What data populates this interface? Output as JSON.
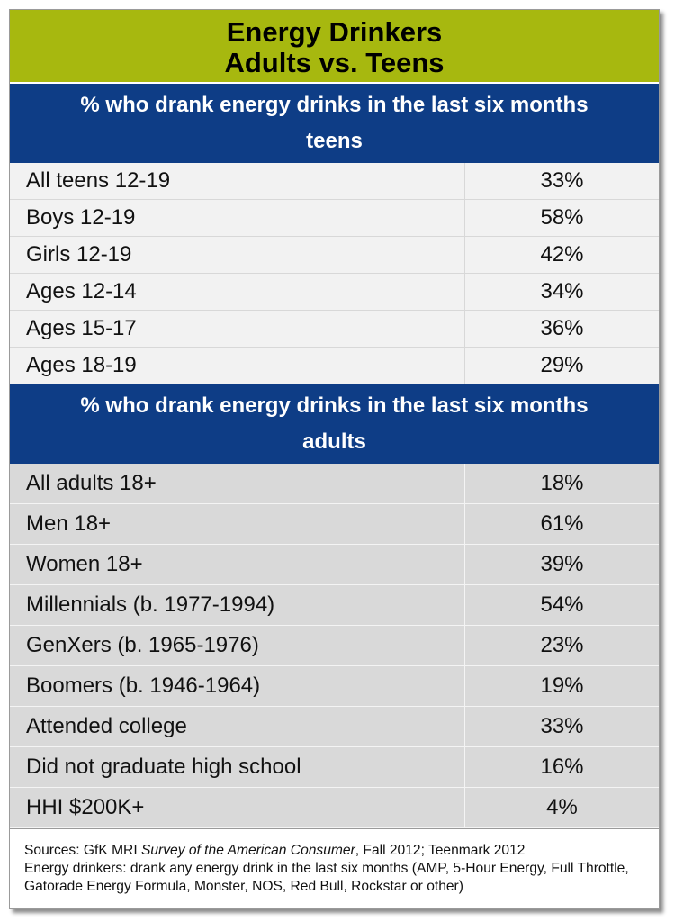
{
  "chart_data": {
    "type": "table",
    "title_line1": "Energy Drinkers",
    "title_line2": "Adults vs. Teens",
    "teens": {
      "header_line1": "% who drank energy drinks in the last six months",
      "header_line2": "teens",
      "rows": [
        {
          "label": "All teens 12-19",
          "value": "33%"
        },
        {
          "label": "Boys 12-19",
          "value": "58%"
        },
        {
          "label": "Girls 12-19",
          "value": "42%"
        },
        {
          "label": "Ages 12-14",
          "value": "34%"
        },
        {
          "label": "Ages 15-17",
          "value": "36%"
        },
        {
          "label": "Ages 18-19",
          "value": "29%"
        }
      ]
    },
    "adults": {
      "header_line1": "% who drank energy drinks in the last six months",
      "header_line2": "adults",
      "rows": [
        {
          "label": "All adults 18+",
          "value": "18%"
        },
        {
          "label": "Men 18+",
          "value": "61%"
        },
        {
          "label": "Women 18+",
          "value": "39%"
        },
        {
          "label": "Millennials (b. 1977-1994)",
          "value": "54%"
        },
        {
          "label": "GenXers (b. 1965-1976)",
          "value": "23%"
        },
        {
          "label": "Boomers (b. 1946-1964)",
          "value": "19%"
        },
        {
          "label": "Attended college",
          "value": "33%"
        },
        {
          "label": "Did not graduate high school",
          "value": "16%"
        },
        {
          "label": "HHI $200K+",
          "value": "4%"
        }
      ]
    },
    "notes": {
      "sources_prefix": "Sources: GfK MRI ",
      "sources_italic": "Survey of the American Consumer",
      "sources_suffix": ", Fall 2012; Teenmark 2012",
      "definition": "Energy drinkers: drank any energy drink in the last six months (AMP, 5-Hour Energy, Full Throttle, Gatorade Energy Formula, Monster, NOS, Red Bull, Rockstar or other)"
    },
    "colors": {
      "title_bg": "#a7b80f",
      "header_bg": "#0e3d86",
      "teen_row_bg": "#f2f2f2",
      "adult_row_bg": "#d9d9d9"
    }
  }
}
